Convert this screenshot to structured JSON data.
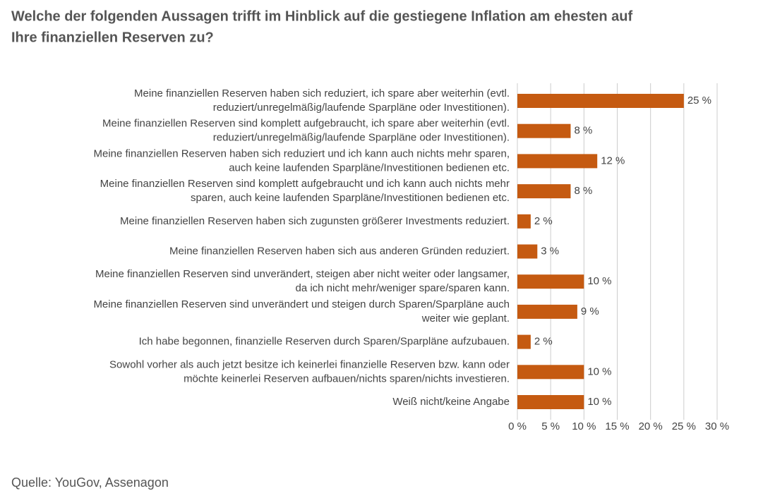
{
  "chart_data": {
    "type": "hbar",
    "title": [
      "Welche der folgenden Aussagen trifft im Hinblick auf die gestiegene Inflation am ehesten auf",
      "Ihre finanziellen Reserven zu?"
    ],
    "source": "Quelle: YouGov, Assenagon",
    "categories": [
      [
        "Meine finanziellen Reserven haben sich reduziert, ich spare aber weiterhin (evtl.",
        "reduziert/unregelmäßig/laufende Sparpläne oder Investitionen)."
      ],
      [
        "Meine finanziellen Reserven sind komplett aufgebraucht, ich spare aber weiterhin (evtl.",
        "reduziert/unregelmäßig/laufende Sparpläne oder Investitionen)."
      ],
      [
        "Meine finanziellen Reserven haben sich reduziert und ich kann auch nichts mehr sparen,",
        "auch keine laufenden Sparpläne/Investitionen bedienen etc."
      ],
      [
        "Meine finanziellen Reserven sind komplett aufgebraucht und ich kann auch nichts mehr",
        "sparen, auch keine laufenden Sparpläne/Investitionen bedienen etc."
      ],
      [
        "Meine finanziellen Reserven haben sich zugunsten größerer Investments reduziert."
      ],
      [
        "Meine finanziellen Reserven haben sich aus anderen Gründen reduziert."
      ],
      [
        "Meine finanziellen Reserven sind unverändert, steigen aber nicht weiter oder langsamer,",
        "da ich nicht mehr/weniger spare/sparen kann."
      ],
      [
        "Meine finanziellen Reserven sind unverändert und steigen durch Sparen/Sparpläne auch",
        "weiter wie geplant."
      ],
      [
        "Ich habe begonnen, finanzielle Reserven durch Sparen/Sparpläne aufzubauen."
      ],
      [
        "Sowohl vorher als auch jetzt besitze ich keinerlei finanzielle Reserven bzw. kann oder",
        "möchte keinerlei Reserven aufbauen/nichts sparen/nichts investieren."
      ],
      [
        "Weiß nicht/keine Angabe"
      ]
    ],
    "values": [
      25,
      8,
      12,
      8,
      2,
      3,
      10,
      9,
      2,
      10,
      10
    ],
    "value_labels": [
      "25 %",
      "8 %",
      "12 %",
      "8 %",
      "2 %",
      "3 %",
      "10 %",
      "9 %",
      "2 %",
      "10 %",
      "10 %"
    ],
    "color": "#c55a11",
    "xlim": [
      0,
      30
    ],
    "xticks": [
      {
        "value": 0,
        "label": "0 %"
      },
      {
        "value": 5,
        "label": "5 %"
      },
      {
        "value": 10,
        "label": "10 %"
      },
      {
        "value": 15,
        "label": "15 %"
      },
      {
        "value": 20,
        "label": "20 %"
      },
      {
        "value": 25,
        "label": "25 %"
      },
      {
        "value": 30,
        "label": "30 %"
      }
    ],
    "grid": true
  }
}
